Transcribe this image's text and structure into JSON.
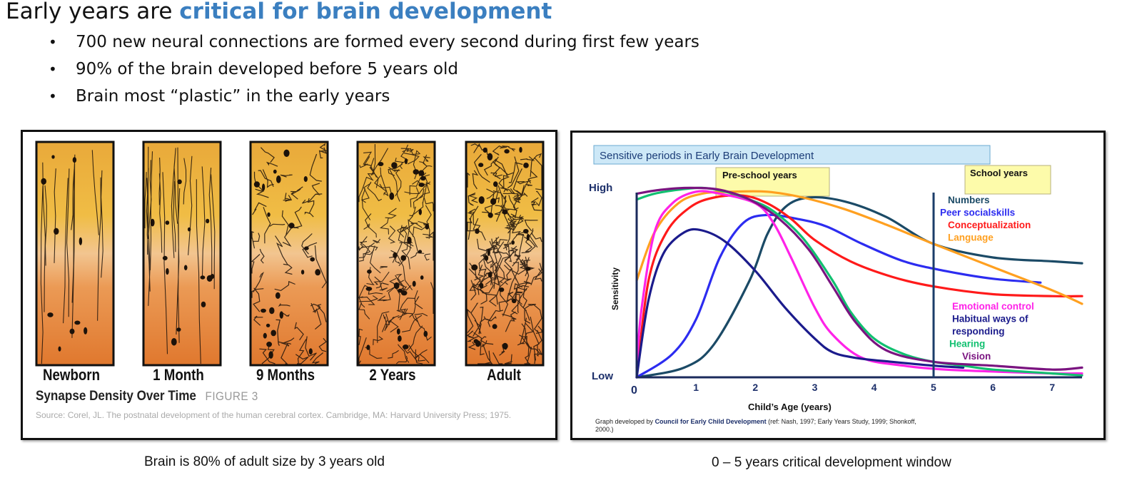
{
  "title": {
    "prefix": "Early years are ",
    "highlight": "critical for brain development"
  },
  "bullets": [
    "700 new neural connections are formed every second during first few years",
    "90% of the brain developed before 5 years old",
    "Brain most “plastic” in the early years"
  ],
  "left_panel": {
    "columns": [
      "Newborn",
      "1 Month",
      "9 Months",
      "2 Years",
      "Adult"
    ],
    "subtitle": "Synapse Density Over Time",
    "figure_label": "FIGURE 3",
    "source": "Source: Corel, JL. The postnatal development of the human cerebral cortex. Cambridge, MA: Harvard University Press; 1975.",
    "caption": "Brain is 80% of adult size by 3 years old"
  },
  "right_panel": {
    "caption": "0 – 5 years critical development window",
    "credit": {
      "prefix": "Graph developed by ",
      "org": "Council for Early Child Development",
      "rest": " (ref: Nash, 1997; Early Years Study, 1999; Shonkoff,",
      "rest2": "2000.)"
    }
  },
  "chart_data": {
    "type": "line",
    "title": "Sensitive periods in Early Brain Development",
    "xlabel": "Child’s Age (years)",
    "ylabel": "Sensitivity",
    "x_ticks": [
      "0",
      "1",
      "2",
      "3",
      "4",
      "5",
      "6",
      "7"
    ],
    "y_ticks": [
      "Low",
      "High"
    ],
    "xlim": [
      0,
      7.5
    ],
    "ylim": [
      0,
      1
    ],
    "annotations": [
      {
        "text": "Pre-school years",
        "x": 2.4
      },
      {
        "text": "School years",
        "x": 6.3
      }
    ],
    "reference_line_x": 5,
    "colors": {
      "numbers": "#1b4a66",
      "peer": "#2c2cf0",
      "concept": "#ff1a1a",
      "language": "#ffa020",
      "emotional": "#ff22e8",
      "habitual": "#1b1b8c",
      "hearing": "#11c070",
      "vision": "#7a1480"
    },
    "legend_top": [
      {
        "name": "Numbers",
        "color": "#1b4a66"
      },
      {
        "name": "Peer socialskills",
        "color": "#2c2cf0"
      },
      {
        "name": "Conceptualization",
        "color": "#ff1a1a"
      },
      {
        "name": "Language",
        "color": "#ffa020"
      }
    ],
    "legend_bottom": [
      {
        "name": "Emotional control",
        "color": "#ff22e8"
      },
      {
        "name": "Habitual ways of",
        "color": "#1b1b8c"
      },
      {
        "name": "responding",
        "color": "#1b1b8c"
      },
      {
        "name": "Hearing",
        "color": "#11c070"
      },
      {
        "name": "Vision",
        "color": "#7a1480"
      }
    ],
    "series": [
      {
        "name": "Numbers",
        "color": "#1b4a66",
        "x": [
          0,
          0.8,
          1.3,
          1.9,
          2.2,
          2.5,
          2.9,
          3.5,
          4.2,
          5,
          6,
          7,
          7.5
        ],
        "y": [
          0,
          0.05,
          0.17,
          0.5,
          0.74,
          0.88,
          0.93,
          0.91,
          0.83,
          0.69,
          0.62,
          0.6,
          0.59
        ]
      },
      {
        "name": "Peer socialskills",
        "color": "#2c2cf0",
        "x": [
          0,
          0.6,
          1.0,
          1.4,
          1.8,
          2.2,
          2.7,
          3.2,
          3.8,
          4.5,
          5.2,
          6,
          6.8
        ],
        "y": [
          0,
          0.12,
          0.3,
          0.62,
          0.8,
          0.84,
          0.82,
          0.78,
          0.69,
          0.6,
          0.55,
          0.51,
          0.49
        ]
      },
      {
        "name": "Conceptualization",
        "color": "#ff1a1a",
        "x": [
          0,
          0.2,
          0.5,
          0.9,
          1.3,
          1.8,
          2.2,
          2.6,
          3.0,
          3.6,
          4.3,
          5.0,
          6.0,
          7.0,
          7.5
        ],
        "y": [
          0,
          0.5,
          0.75,
          0.88,
          0.93,
          0.94,
          0.9,
          0.82,
          0.71,
          0.6,
          0.52,
          0.47,
          0.43,
          0.42,
          0.42
        ]
      },
      {
        "name": "Language",
        "color": "#ffa020",
        "x": [
          0,
          0.3,
          0.7,
          1.1,
          1.6,
          2.2,
          2.8,
          3.5,
          4.2,
          5.0,
          6.0,
          7.0,
          7.5
        ],
        "y": [
          0.5,
          0.75,
          0.9,
          0.95,
          0.96,
          0.96,
          0.93,
          0.87,
          0.79,
          0.69,
          0.57,
          0.45,
          0.38
        ]
      },
      {
        "name": "Emotional control",
        "color": "#ff22e8",
        "x": [
          0,
          0.08,
          0.3,
          0.6,
          1.0,
          1.4,
          2.0,
          2.3,
          2.6,
          3.0,
          3.3,
          3.8,
          4.5,
          5.2,
          6.0,
          7.0,
          7.5
        ],
        "y": [
          0.05,
          0.35,
          0.75,
          0.9,
          0.96,
          0.95,
          0.9,
          0.8,
          0.62,
          0.36,
          0.22,
          0.1,
          0.06,
          0.04,
          0.03,
          0.02,
          0.02
        ]
      },
      {
        "name": "Habitual ways of responding",
        "color": "#1b1b8c",
        "x": [
          0,
          0.2,
          0.45,
          0.8,
          1.1,
          1.5,
          2.0,
          2.5,
          3.0,
          3.3,
          3.7,
          4.3,
          5.0,
          5.5
        ],
        "y": [
          0,
          0.4,
          0.64,
          0.75,
          0.76,
          0.7,
          0.55,
          0.36,
          0.2,
          0.13,
          0.1,
          0.08,
          0.06,
          0.05
        ]
      },
      {
        "name": "Hearing",
        "color": "#11c070",
        "x": [
          0,
          0.3,
          0.7,
          1.1,
          1.5,
          1.9,
          2.3,
          2.8,
          3.3,
          3.6,
          4.0,
          4.5,
          5.0,
          5.5,
          6.0,
          7.0,
          7.5
        ],
        "y": [
          0.92,
          0.95,
          0.97,
          0.98,
          0.96,
          0.92,
          0.86,
          0.72,
          0.5,
          0.34,
          0.2,
          0.12,
          0.08,
          0.06,
          0.04,
          0.02,
          0.01
        ]
      },
      {
        "name": "Vision",
        "color": "#7a1480",
        "x": [
          0,
          0.4,
          0.9,
          1.4,
          1.9,
          2.4,
          2.9,
          3.3,
          3.7,
          4.2,
          5.0,
          6.0,
          7.0,
          7.5
        ],
        "y": [
          0.95,
          0.97,
          0.98,
          0.97,
          0.92,
          0.82,
          0.66,
          0.47,
          0.28,
          0.14,
          0.08,
          0.06,
          0.04,
          0.05
        ]
      }
    ]
  }
}
